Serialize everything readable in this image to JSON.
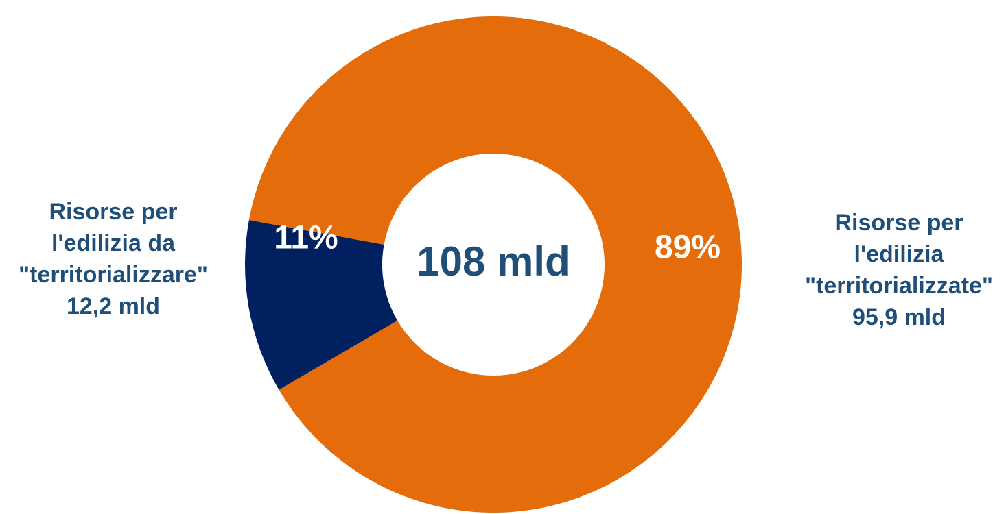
{
  "chart_data": {
    "type": "pie",
    "donut": true,
    "center_label": "108 mld",
    "slices": [
      {
        "percent_label": "89%",
        "percent": 89,
        "value": 95.9,
        "label_lines": [
          "Risorse per",
          "l'edilizia",
          "\"territorializzate\"",
          "95,9 mld"
        ],
        "color": "#e46c0a"
      },
      {
        "percent_label": "11%",
        "percent": 11,
        "value": 12.2,
        "label_lines": [
          "Risorse per",
          "l'edilizia da",
          "\"territorializzare\"",
          "12,2 mld"
        ],
        "color": "#002060"
      }
    ],
    "colors": {
      "label_text": "#1f4e79",
      "center_text": "#1f4e79",
      "percent_text": "#ffffff"
    }
  }
}
